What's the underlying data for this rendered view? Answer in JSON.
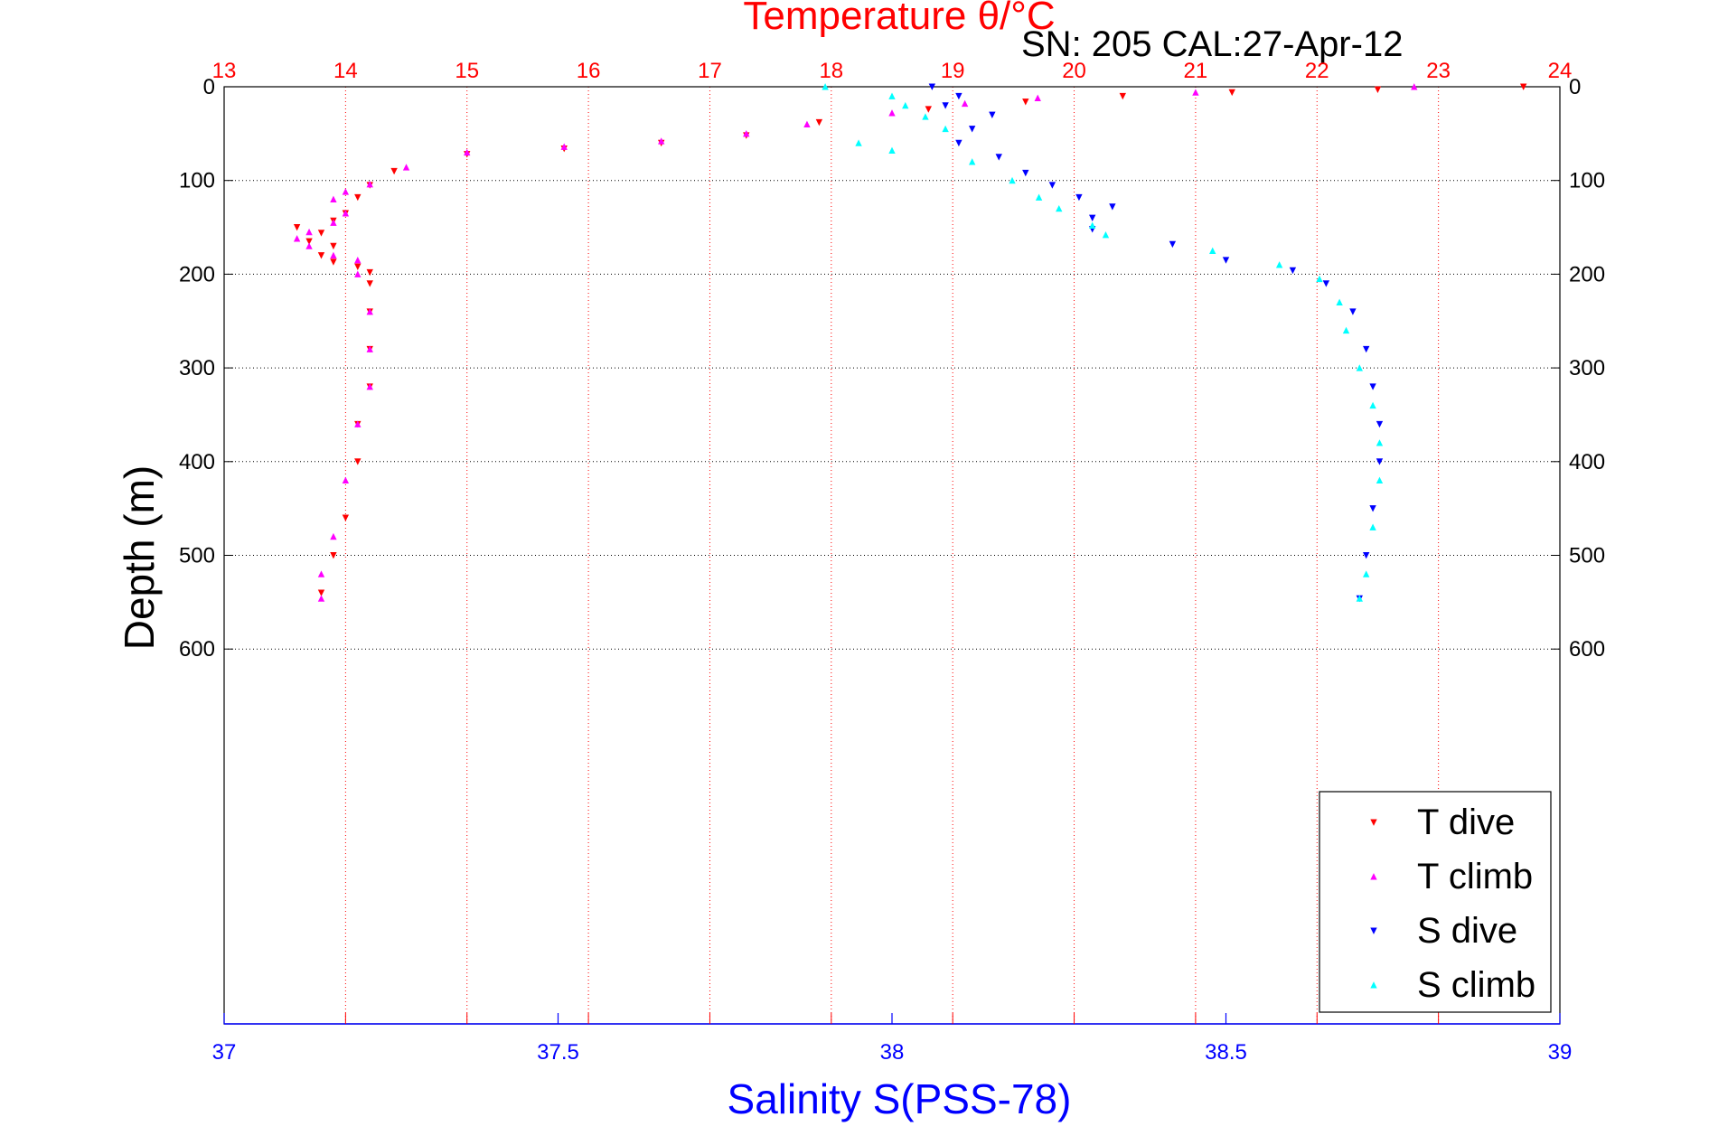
{
  "chart_data": {
    "type": "scatter",
    "title_top": "Temperature θ/°C",
    "serial_label": "SN: 205  CAL:27-Apr-12",
    "xlabel_bottom": "Salinity S(PSS-78)",
    "ylabel": "Depth (m)",
    "temperature_axis": {
      "range": [
        13,
        24
      ],
      "ticks": [
        "13",
        "14",
        "15",
        "16",
        "17",
        "18",
        "19",
        "20",
        "21",
        "22",
        "23",
        "24"
      ]
    },
    "salinity_axis": {
      "range": [
        37,
        39
      ],
      "ticks": [
        "37",
        "37.5",
        "38",
        "38.5",
        "39"
      ]
    },
    "depth_axis": {
      "range": [
        0,
        1000
      ],
      "reversed": true,
      "ticks": [
        "0",
        "100",
        "200",
        "300",
        "400",
        "500",
        "600"
      ]
    },
    "grid": true,
    "legend_position": "bottom-right",
    "colors": {
      "temperature_axis": "#ff0000",
      "salinity_axis": "#0000ff",
      "t_dive": "#ff0000",
      "t_climb": "#ff00ff",
      "s_dive": "#0000ff",
      "s_climb": "#00ffff"
    },
    "series": [
      {
        "name": "T dive",
        "axis": "temperature",
        "points": [
          [
            23.7,
            0
          ],
          [
            22.5,
            3
          ],
          [
            21.3,
            6
          ],
          [
            20.4,
            10
          ],
          [
            19.6,
            16
          ],
          [
            18.8,
            24
          ],
          [
            17.9,
            38
          ],
          [
            17.3,
            52
          ],
          [
            16.6,
            60
          ],
          [
            15.8,
            66
          ],
          [
            15.0,
            72
          ],
          [
            14.4,
            90
          ],
          [
            14.2,
            105
          ],
          [
            14.1,
            118
          ],
          [
            14.0,
            135
          ],
          [
            13.9,
            143
          ],
          [
            13.6,
            150
          ],
          [
            13.8,
            156
          ],
          [
            13.7,
            165
          ],
          [
            13.9,
            170
          ],
          [
            13.8,
            180
          ],
          [
            13.9,
            187
          ],
          [
            14.1,
            192
          ],
          [
            14.2,
            198
          ],
          [
            14.2,
            210
          ],
          [
            14.2,
            240
          ],
          [
            14.2,
            280
          ],
          [
            14.2,
            320
          ],
          [
            14.1,
            360
          ],
          [
            14.1,
            400
          ],
          [
            14.0,
            460
          ],
          [
            13.9,
            500
          ],
          [
            13.8,
            540
          ]
        ]
      },
      {
        "name": "T climb",
        "axis": "temperature",
        "points": [
          [
            22.8,
            0
          ],
          [
            21.0,
            6
          ],
          [
            19.7,
            12
          ],
          [
            19.1,
            18
          ],
          [
            18.5,
            28
          ],
          [
            17.8,
            40
          ],
          [
            17.3,
            50
          ],
          [
            16.6,
            58
          ],
          [
            15.8,
            64
          ],
          [
            15.0,
            70
          ],
          [
            14.5,
            86
          ],
          [
            14.2,
            104
          ],
          [
            14.0,
            112
          ],
          [
            13.9,
            120
          ],
          [
            14.0,
            135
          ],
          [
            13.9,
            145
          ],
          [
            13.7,
            155
          ],
          [
            13.6,
            162
          ],
          [
            13.7,
            170
          ],
          [
            13.9,
            180
          ],
          [
            14.1,
            185
          ],
          [
            14.1,
            200
          ],
          [
            14.2,
            240
          ],
          [
            14.2,
            280
          ],
          [
            14.2,
            320
          ],
          [
            14.1,
            360
          ],
          [
            14.0,
            420
          ],
          [
            13.9,
            480
          ],
          [
            13.8,
            520
          ],
          [
            13.8,
            546
          ]
        ]
      },
      {
        "name": "S dive",
        "axis": "salinity",
        "points": [
          [
            38.06,
            0
          ],
          [
            38.1,
            10
          ],
          [
            38.08,
            20
          ],
          [
            38.15,
            30
          ],
          [
            38.12,
            45
          ],
          [
            38.1,
            60
          ],
          [
            38.16,
            75
          ],
          [
            38.2,
            92
          ],
          [
            38.24,
            105
          ],
          [
            38.28,
            118
          ],
          [
            38.33,
            128
          ],
          [
            38.3,
            140
          ],
          [
            38.3,
            152
          ],
          [
            38.42,
            168
          ],
          [
            38.5,
            185
          ],
          [
            38.6,
            196
          ],
          [
            38.65,
            210
          ],
          [
            38.69,
            240
          ],
          [
            38.71,
            280
          ],
          [
            38.72,
            320
          ],
          [
            38.73,
            360
          ],
          [
            38.73,
            400
          ],
          [
            38.72,
            450
          ],
          [
            38.71,
            500
          ],
          [
            38.7,
            546
          ]
        ]
      },
      {
        "name": "S climb",
        "axis": "salinity",
        "points": [
          [
            37.9,
            0
          ],
          [
            38.0,
            10
          ],
          [
            38.02,
            20
          ],
          [
            38.05,
            32
          ],
          [
            38.08,
            45
          ],
          [
            37.95,
            60
          ],
          [
            38.0,
            68
          ],
          [
            38.12,
            80
          ],
          [
            38.18,
            100
          ],
          [
            38.22,
            118
          ],
          [
            38.25,
            130
          ],
          [
            38.3,
            148
          ],
          [
            38.32,
            158
          ],
          [
            38.48,
            175
          ],
          [
            38.58,
            190
          ],
          [
            38.64,
            205
          ],
          [
            38.67,
            230
          ],
          [
            38.68,
            260
          ],
          [
            38.7,
            300
          ],
          [
            38.72,
            340
          ],
          [
            38.73,
            380
          ],
          [
            38.73,
            420
          ],
          [
            38.72,
            470
          ],
          [
            38.71,
            520
          ],
          [
            38.7,
            546
          ]
        ]
      }
    ]
  }
}
